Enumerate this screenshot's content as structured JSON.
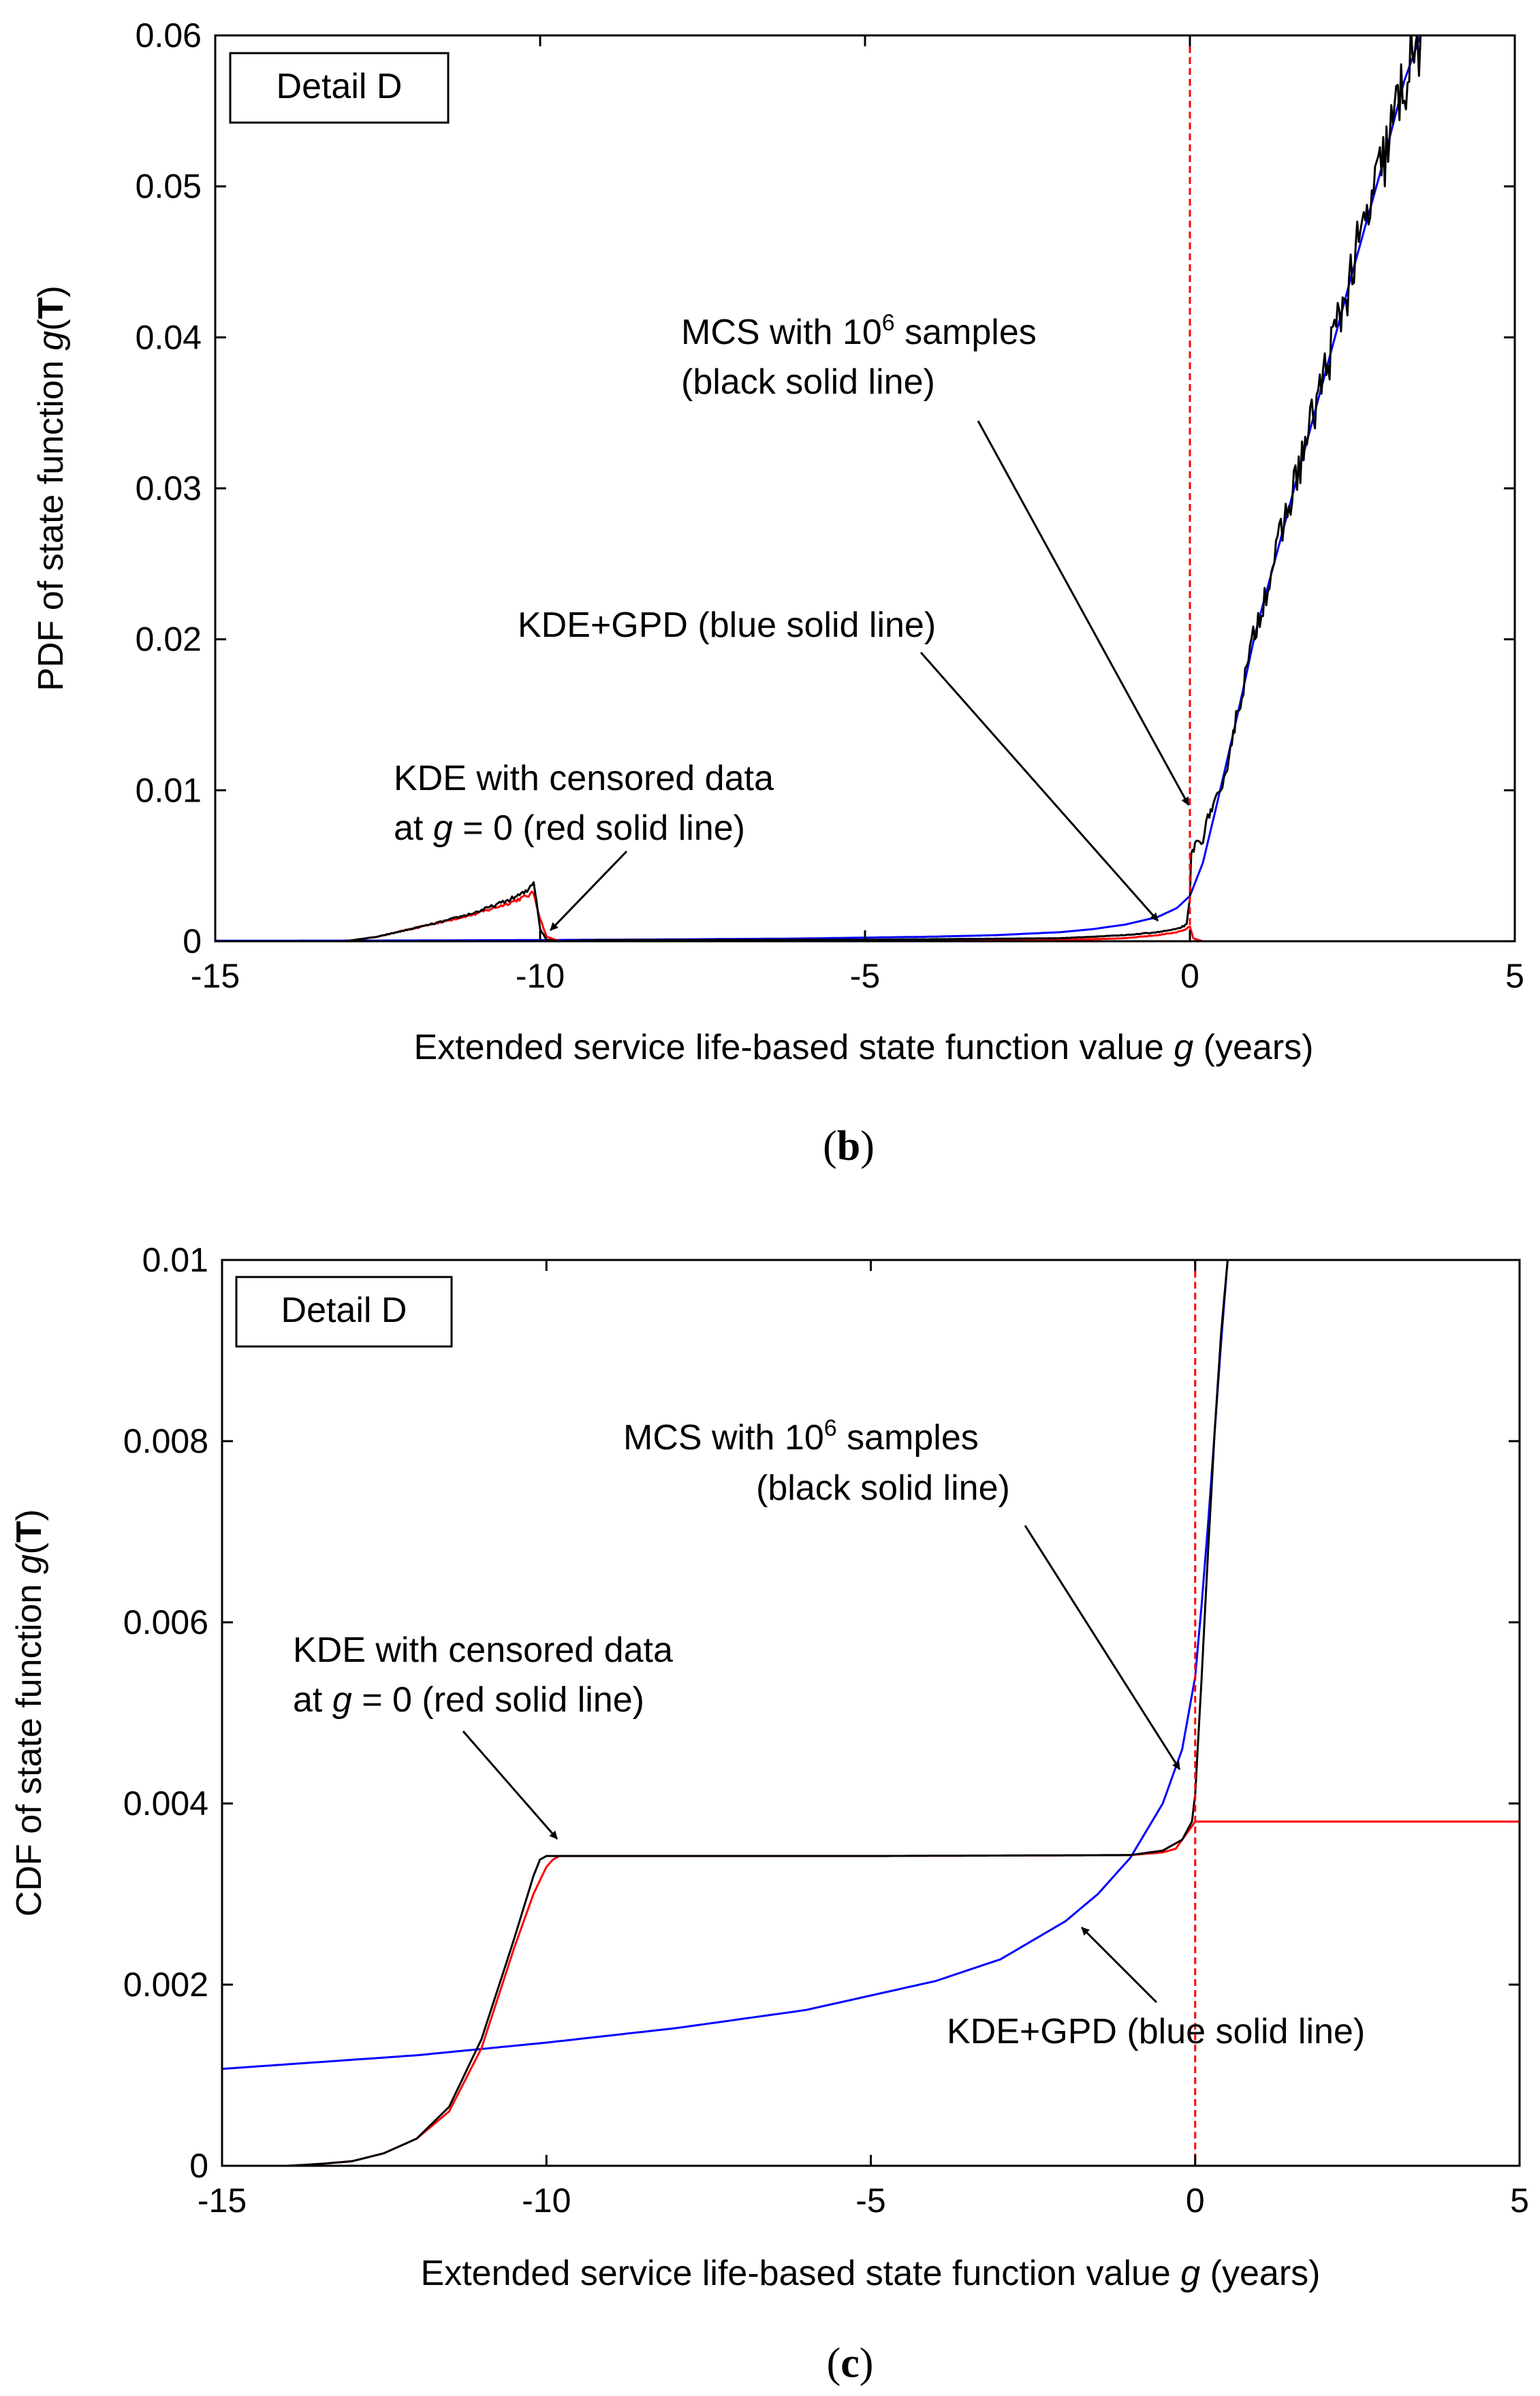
{
  "colors": {
    "mcs": "#000000",
    "gpd": "#0000ff",
    "kde": "#ff0000",
    "axis": "#000000"
  },
  "chart_data": [
    {
      "type": "line",
      "panel": "(b)",
      "panel_letter": "b",
      "legend_box": "Detail D",
      "xlabel_pre": "Extended service life-based state function value ",
      "xlabel_var": "g",
      "xlabel_post": " (years)",
      "ylabel_pre": "PDF of state function ",
      "ylabel_var": "g",
      "ylabel_paren_open": "(",
      "ylabel_bold": "T",
      "ylabel_paren_close": ")",
      "xlim": [
        -15,
        5
      ],
      "ylim": [
        0,
        0.06
      ],
      "xticks": [
        -15,
        -10,
        -5,
        0,
        5
      ],
      "xtick_labels": [
        "-15",
        "-10",
        "-5",
        "0",
        "5"
      ],
      "yticks": [
        0,
        0.01,
        0.02,
        0.03,
        0.04,
        0.05,
        0.06
      ],
      "ytick_labels": [
        "0",
        "0.01",
        "0.02",
        "0.03",
        "0.04",
        "0.05",
        "0.06"
      ],
      "vline_x": 0,
      "series": [
        {
          "name": "MCS with 10^6 samples",
          "color": "#000000",
          "noise": true,
          "x": [
            -15,
            -13,
            -12.5,
            -12,
            -11.5,
            -11,
            -10.5,
            -10.2,
            -10.1,
            -10.05,
            -10.0,
            -9.9,
            -9.7,
            -9,
            -5,
            -2,
            -1,
            -0.5,
            -0.2,
            -0.05,
            0,
            0.02,
            0.1,
            0.2,
            0.3,
            0.4,
            0.5,
            0.6,
            0.8,
            1,
            1.5,
            2,
            2.5,
            3,
            3.3,
            3.55
          ],
          "y": [
            0,
            0,
            0.0003,
            0.0008,
            0.0013,
            0.0019,
            0.0027,
            0.0033,
            0.004,
            0.0025,
            0.0008,
            0.0001,
            0,
            8e-05,
            0.0001,
            0.0002,
            0.0004,
            0.0006,
            0.0008,
            0.0011,
            0.0028,
            0.0058,
            0.0065,
            0.0068,
            0.0085,
            0.0093,
            0.0098,
            0.0125,
            0.0165,
            0.0205,
            0.0285,
            0.0365,
            0.0445,
            0.052,
            0.057,
            0.06
          ]
        },
        {
          "name": "KDE+GPD",
          "color": "#0000ff",
          "noise": false,
          "x": [
            -15,
            -12,
            -10,
            -8,
            -6,
            -4,
            -3,
            -2,
            -1.5,
            -1,
            -0.5,
            -0.2,
            0,
            0.2,
            0.4,
            0.6,
            0.8,
            1,
            1.5,
            2,
            2.5,
            3,
            3.3,
            3.55
          ],
          "y": [
            3e-05,
            5e-05,
            8e-05,
            0.00012,
            0.00018,
            0.0003,
            0.0004,
            0.0006,
            0.0008,
            0.0011,
            0.0016,
            0.0022,
            0.003,
            0.0052,
            0.0088,
            0.0125,
            0.0163,
            0.0203,
            0.0283,
            0.0363,
            0.0443,
            0.052,
            0.057,
            0.06
          ]
        },
        {
          "name": "KDE with censored data",
          "color": "#ff0000",
          "noise": true,
          "x": [
            -15,
            -13,
            -12.5,
            -12,
            -11.5,
            -11,
            -10.5,
            -10.2,
            -10.1,
            -10.0,
            -9.9,
            -9.7,
            -9,
            -5,
            -2,
            -1,
            -0.5,
            -0.2,
            -0.05,
            0,
            0.05,
            0.2,
            5
          ],
          "y": [
            0,
            0,
            0.0003,
            0.0008,
            0.0013,
            0.0018,
            0.0025,
            0.003,
            0.0032,
            0.0015,
            0.0003,
            0,
            2e-05,
            3e-05,
            8e-05,
            0.0002,
            0.0004,
            0.0006,
            0.0008,
            0.001,
            0.0002,
            0,
            0
          ]
        }
      ],
      "annotations": {
        "mcs_line1_pre": "MCS with 10",
        "mcs_line1_sup": "6",
        "mcs_line1_post": " samples",
        "mcs_line2": "(black solid line)",
        "gpd_line1": "KDE+GPD (blue solid line)",
        "kde_line1": "KDE with censored data",
        "kde_line2_pre": "at ",
        "kde_line2_var": "g",
        "kde_line2_post": " = 0 (red solid line)"
      }
    },
    {
      "type": "line",
      "panel": "(c)",
      "panel_letter": "c",
      "legend_box": "Detail D",
      "xlabel_pre": "Extended service life-based state function value ",
      "xlabel_var": "g",
      "xlabel_post": " (years)",
      "ylabel_pre": "CDF of state function ",
      "ylabel_var": "g",
      "ylabel_paren_open": "(",
      "ylabel_bold": "T",
      "ylabel_paren_close": ")",
      "xlim": [
        -15,
        5
      ],
      "ylim": [
        0,
        0.01
      ],
      "xticks": [
        -15,
        -10,
        -5,
        0,
        5
      ],
      "xtick_labels": [
        "-15",
        "-10",
        "-5",
        "0",
        "5"
      ],
      "yticks": [
        0,
        0.002,
        0.004,
        0.006,
        0.008,
        0.01
      ],
      "ytick_labels": [
        "0",
        "0.002",
        "0.004",
        "0.006",
        "0.008",
        "0.01"
      ],
      "vline_x": 0,
      "series": [
        {
          "name": "MCS with 10^6 samples",
          "color": "#000000",
          "noise": false,
          "x": [
            -15,
            -14,
            -13.5,
            -13,
            -12.5,
            -12,
            -11.5,
            -11,
            -10.5,
            -10.2,
            -10.1,
            -10.0,
            -9.9,
            -5,
            -1,
            -0.5,
            -0.2,
            -0.05,
            0,
            0.1,
            0.2,
            0.3,
            0.4,
            0.5
          ],
          "y": [
            0,
            0,
            2e-05,
            5e-05,
            0.00014,
            0.0003,
            0.00065,
            0.0014,
            0.0025,
            0.0032,
            0.00338,
            0.00342,
            0.00342,
            0.00342,
            0.00343,
            0.00348,
            0.0036,
            0.0038,
            0.0041,
            0.0054,
            0.0068,
            0.0081,
            0.0092,
            0.01
          ]
        },
        {
          "name": "KDE+GPD",
          "color": "#0000ff",
          "noise": false,
          "x": [
            -15,
            -12,
            -10,
            -8,
            -6,
            -4,
            -3,
            -2,
            -1.5,
            -1,
            -0.5,
            -0.2,
            0,
            0.1,
            0.2,
            0.3,
            0.4,
            0.5
          ],
          "y": [
            0.00107,
            0.00122,
            0.00136,
            0.00152,
            0.00172,
            0.00204,
            0.00228,
            0.0027,
            0.003,
            0.0034,
            0.004,
            0.0046,
            0.0054,
            0.0062,
            0.0071,
            0.0081,
            0.0091,
            0.01
          ]
        },
        {
          "name": "KDE with censored data",
          "color": "#ff0000",
          "noise": false,
          "x": [
            -15,
            -14,
            -13.5,
            -13,
            -12.5,
            -12,
            -11.5,
            -11,
            -10.5,
            -10.2,
            -10,
            -9.9,
            -9.8,
            -5,
            -1,
            -0.5,
            -0.3,
            -0.1,
            0,
            5
          ],
          "y": [
            0,
            0,
            2e-05,
            5e-05,
            0.00014,
            0.0003,
            0.0006,
            0.0013,
            0.0024,
            0.003,
            0.0033,
            0.00338,
            0.00342,
            0.00342,
            0.00343,
            0.00346,
            0.0035,
            0.0037,
            0.0038,
            0.0038
          ]
        }
      ],
      "annotations": {
        "mcs_line1_pre": "MCS with 10",
        "mcs_line1_sup": "6",
        "mcs_line1_post": " samples",
        "mcs_line2": "(black solid line)",
        "gpd_line1": "KDE+GPD (blue solid line)",
        "kde_line1": "KDE with censored data",
        "kde_line2_pre": "at ",
        "kde_line2_var": "g",
        "kde_line2_post": " = 0 (red solid line)"
      }
    }
  ]
}
